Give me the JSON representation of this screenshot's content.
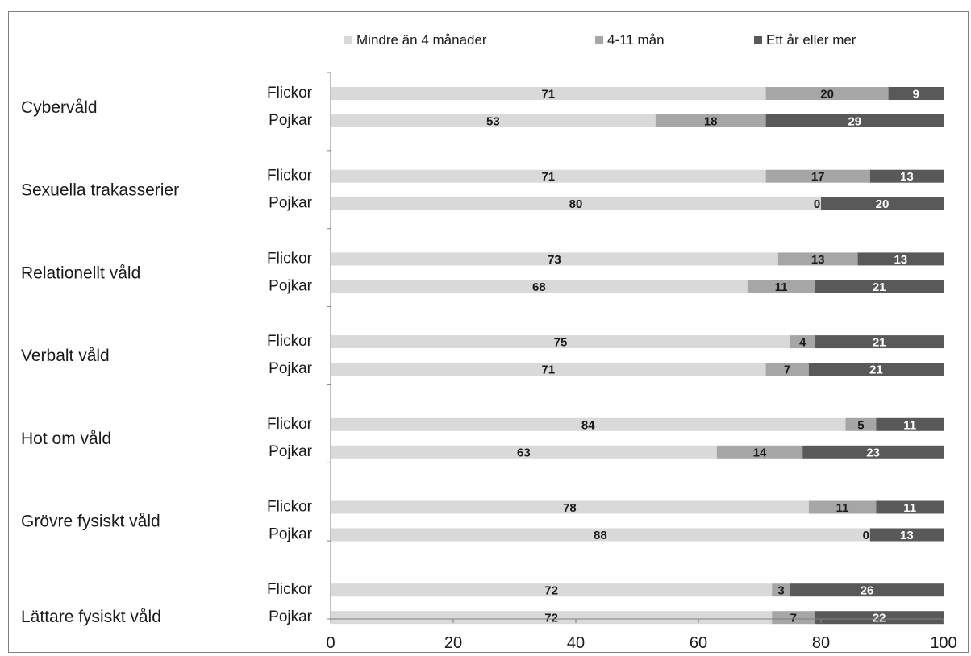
{
  "chart_data": {
    "type": "bar",
    "orientation": "horizontal",
    "stacked": true,
    "title": "",
    "xlabel": "",
    "ylabel": "",
    "xlim": [
      0,
      100
    ],
    "x_ticks": [
      "0",
      "20",
      "40",
      "60",
      "80",
      "100"
    ],
    "grid": false,
    "legend_position": "top",
    "series": [
      {
        "name": "Mindre än 4 månader",
        "color": "#d9d9d9",
        "label_color": "#1a1a1a"
      },
      {
        "name": "4-11 mån",
        "color": "#a6a6a6",
        "label_color": "#1a1a1a"
      },
      {
        "name": "Ett år eller mer",
        "color": "#595959",
        "label_color": "#ffffff"
      }
    ],
    "groups": [
      {
        "name": "Cybervåld",
        "bars": [
          {
            "name": "Flickor",
            "values": [
              71,
              20,
              9
            ]
          },
          {
            "name": "Pojkar",
            "values": [
              53,
              18,
              29
            ]
          }
        ]
      },
      {
        "name": "Sexuella trakasserier",
        "bars": [
          {
            "name": "Flickor",
            "values": [
              71,
              17,
              13
            ]
          },
          {
            "name": "Pojkar",
            "values": [
              80,
              0,
              20
            ]
          }
        ]
      },
      {
        "name": "Relationellt våld",
        "bars": [
          {
            "name": "Flickor",
            "values": [
              73,
              13,
              13
            ]
          },
          {
            "name": "Pojkar",
            "values": [
              68,
              11,
              21
            ]
          }
        ]
      },
      {
        "name": "Verbalt våld",
        "bars": [
          {
            "name": "Flickor",
            "values": [
              75,
              4,
              21
            ]
          },
          {
            "name": "Pojkar",
            "values": [
              71,
              7,
              21
            ]
          }
        ]
      },
      {
        "name": "Hot om våld",
        "bars": [
          {
            "name": "Flickor",
            "values": [
              84,
              5,
              11
            ]
          },
          {
            "name": "Pojkar",
            "values": [
              63,
              14,
              23
            ]
          }
        ]
      },
      {
        "name": "Grövre fysiskt våld",
        "bars": [
          {
            "name": "Flickor",
            "values": [
              78,
              11,
              11
            ]
          },
          {
            "name": "Pojkar",
            "values": [
              88,
              0,
              13
            ]
          }
        ]
      },
      {
        "name": "Lättare fysiskt våld",
        "bars": [
          {
            "name": "Flickor",
            "values": [
              72,
              3,
              26
            ]
          },
          {
            "name": "Pojkar",
            "values": [
              72,
              7,
              22
            ]
          }
        ]
      }
    ]
  }
}
